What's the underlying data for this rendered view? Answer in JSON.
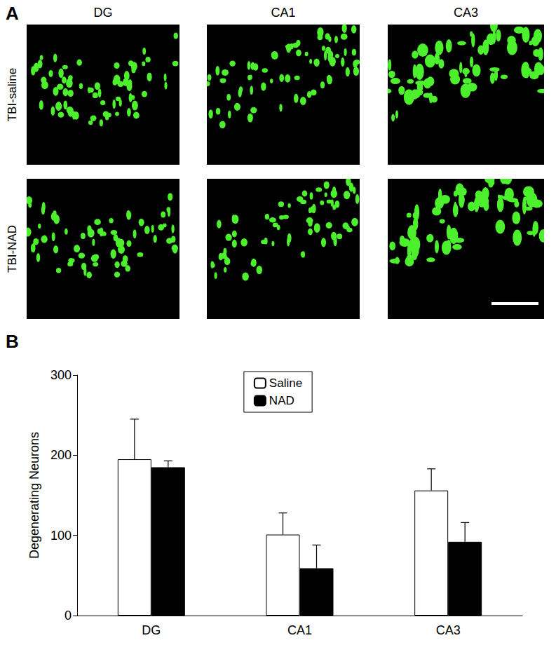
{
  "panel_a": {
    "label": "A",
    "columns": [
      "DG",
      "CA1",
      "CA3"
    ],
    "rows": [
      "TBI-saline",
      "TBI-NAD"
    ]
  },
  "chart_data": {
    "type": "bar",
    "panel_label": "B",
    "ylabel": "Degenerating Neurons",
    "categories": [
      "DG",
      "CA1",
      "CA3"
    ],
    "series": [
      {
        "name": "Saline",
        "color": "#ffffff",
        "values": [
          195,
          101,
          156
        ],
        "errors": [
          50,
          27,
          27
        ]
      },
      {
        "name": "NAD",
        "color": "#000000",
        "values": [
          185,
          59,
          92
        ],
        "errors": [
          8,
          29,
          24
        ]
      }
    ],
    "ylim": [
      0,
      300
    ],
    "yticks": [
      0,
      100,
      200,
      300
    ],
    "grid": false,
    "legend": "top"
  }
}
